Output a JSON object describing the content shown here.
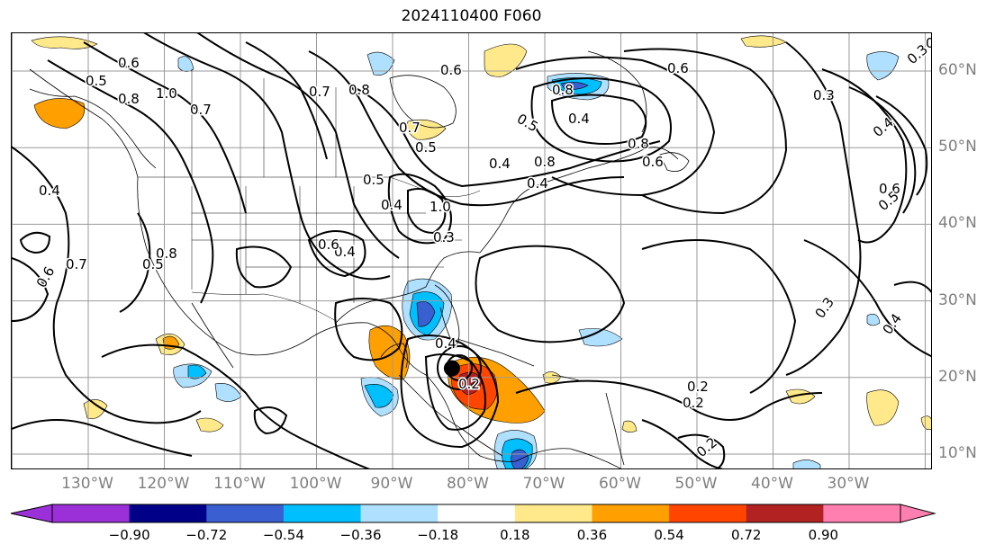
{
  "title": "2024110400 F060",
  "lon_labels": [
    "130°W",
    "120°W",
    "110°W",
    "100°W",
    "90°W",
    "80°W",
    "70°W",
    "60°W",
    "50°W",
    "40°W",
    "30°W"
  ],
  "lat_labels": [
    "60°N",
    "50°N",
    "40°N",
    "30°N",
    "20°N",
    "10°N"
  ],
  "colorbar": {
    "ticks": [
      "−0.90",
      "−0.72",
      "−0.54",
      "−0.36",
      "−0.18",
      "0.18",
      "0.36",
      "0.54",
      "0.72",
      "0.90"
    ],
    "colors": [
      "#9b30d8",
      "#000088",
      "#3a5fd0",
      "#00bfff",
      "#b0e0ff",
      "#ffffff",
      "#ffe98a",
      "#ffa000",
      "#ff4500",
      "#b22222",
      "#ff80b0"
    ]
  },
  "contour_labels": [
    "0.5",
    "0.6",
    "0.8",
    "1.0",
    "0.7",
    "0.8",
    "0.6",
    "0.5",
    "0.8",
    "0.4",
    "0.6",
    "0.8",
    "0.6",
    "0.4",
    "0.5",
    "0.4",
    "0.8",
    "0.7",
    "0.6",
    "0.5",
    "0.3",
    "0.4",
    "0.6",
    "0.4",
    "0.5",
    "0.7",
    "0.4",
    "0.8",
    "0.3",
    "0.3",
    "0.2",
    "0.2",
    "0.4",
    "0.2",
    "1.0",
    "0.7",
    "0.4",
    "0.6",
    "0.3",
    "0.5",
    "0.3",
    "0.4",
    "0.2"
  ],
  "marker": {
    "lon": -82.2,
    "lat": 21.2
  }
}
